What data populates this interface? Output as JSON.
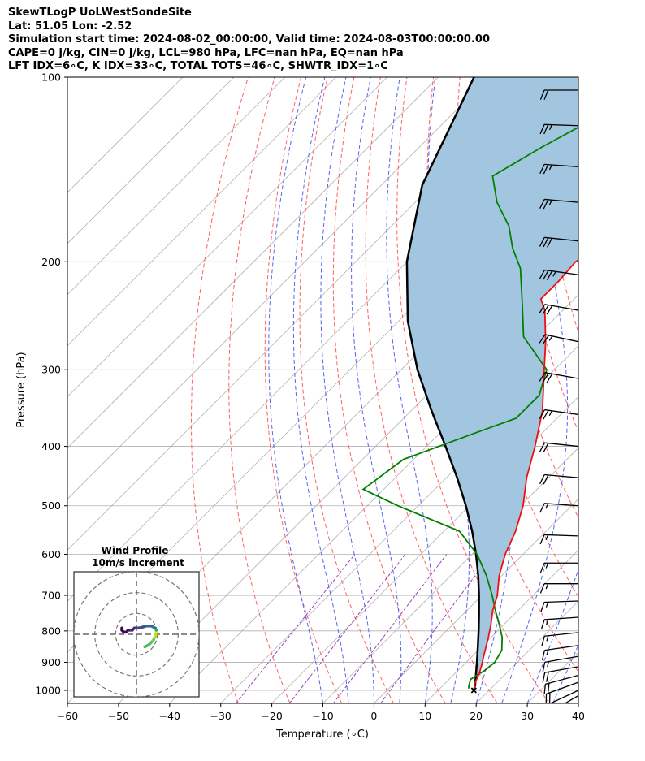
{
  "header": {
    "line1": "SkewTLogP UoLWestSondeSite",
    "line2": "Lat: 51.05   Lon: -2.52",
    "line3": "Simulation start time: 2024-08-02_00:00:00, Valid time: 2024-08-03T00:00:00.00",
    "line4": "CAPE=0 j/kg, CIN=0 j/kg, LCL=980 hPa, LFC=nan hPa, EQ=nan hPa",
    "line5": "LFT IDX=6∘C, K IDX=33∘C, TOTAL TOTS=46∘C, SHWTR_IDX=1∘C"
  },
  "colors": {
    "temperature": "#ee1111",
    "dewpoint": "#008000",
    "parcel": "#000000",
    "cape_shade": "#a3c6e0",
    "dry_adiabat": "#ff6060",
    "moist_adiabat": "#5566ee",
    "mixing_ratio": "#9944bb",
    "isotherm": "#b0b0b0"
  },
  "chart_data": {
    "type": "line",
    "xlabel": "Temperature (∘C)",
    "ylabel": "Pressure (hPa)",
    "x_ticks": [
      "−60",
      "−50",
      "−40",
      "−30",
      "−20",
      "−10",
      "0",
      "10",
      "20",
      "30",
      "40"
    ],
    "y_ticks": [
      "100",
      "200",
      "300",
      "400",
      "500",
      "600",
      "700",
      "800",
      "900",
      "1000"
    ],
    "xlim": [
      -60,
      40
    ],
    "ylim": [
      1050,
      100
    ],
    "y_scale": "log",
    "skew_degrees": 45,
    "series": [
      {
        "key": "temperature",
        "pressure": [
          993,
          980,
          960,
          940,
          910,
          870,
          820,
          780,
          740,
          700,
          650,
          600,
          550,
          500,
          450,
          400,
          350,
          300,
          270,
          240,
          230,
          215,
          200,
          185,
          170,
          155,
          145,
          130,
          120,
          110,
          100
        ],
        "temp": [
          16.8,
          16.0,
          15.4,
          14.8,
          13.6,
          11.8,
          9.5,
          7.4,
          5.0,
          3.0,
          -0.5,
          -3.5,
          -6.0,
          -9.5,
          -14.3,
          -18.8,
          -24.3,
          -32.0,
          -37.2,
          -43.5,
          -46.5,
          -46.5,
          -47.0,
          -44.0,
          -41.0,
          -35.0,
          -32.0,
          -32.0,
          -32.0,
          -31.5,
          -30.5
        ]
      },
      {
        "key": "dewpoint",
        "pressure": [
          993,
          980,
          960,
          945,
          930,
          900,
          860,
          820,
          780,
          740,
          700,
          650,
          600,
          550,
          500,
          470,
          420,
          380,
          360,
          330,
          300,
          265,
          235,
          205,
          190,
          175,
          160,
          145,
          130,
          120,
          110,
          100
        ],
        "temp": [
          15.6,
          15.0,
          14.2,
          14.6,
          15.2,
          15.6,
          14.6,
          12.2,
          9.0,
          5.5,
          2.0,
          -3.0,
          -9.0,
          -17.0,
          -34.0,
          -44.0,
          -42.0,
          -33.0,
          -28.0,
          -28.0,
          -31.5,
          -42.5,
          -49.0,
          -56.5,
          -62.0,
          -67.0,
          -74.0,
          -80.0,
          -76.0,
          -72.5,
          -68.0,
          -65.0
        ]
      },
      {
        "key": "parcel",
        "pressure": [
          1000,
          980,
          950,
          900,
          850,
          800,
          750,
          700,
          650,
          600,
          550,
          500,
          450,
          400,
          350,
          300,
          250,
          200,
          150,
          100
        ],
        "temp": [
          17.0,
          16.2,
          14.7,
          12.1,
          9.3,
          6.3,
          3.0,
          -0.6,
          -4.6,
          -9.2,
          -14.5,
          -20.7,
          -27.9,
          -36.3,
          -46.0,
          -56.8,
          -68.2,
          -80.0,
          -92.0,
          -103.0
        ]
      }
    ],
    "wind_barbs_pressure": [
      1020,
      1000,
      970,
      945,
      915,
      880,
      845,
      805,
      760,
      715,
      670,
      620,
      560,
      500,
      450,
      400,
      355,
      310,
      270,
      240,
      210,
      185,
      160,
      140,
      120,
      105
    ],
    "wind_barbs_speed_kt": [
      10,
      15,
      20,
      20,
      20,
      15,
      15,
      15,
      15,
      15,
      15,
      15,
      15,
      15,
      20,
      20,
      25,
      30,
      25,
      30,
      35,
      30,
      25,
      25,
      25,
      20
    ],
    "wind_barbs_dir_deg": [
      240,
      245,
      250,
      255,
      260,
      260,
      262,
      264,
      266,
      268,
      270,
      270,
      272,
      274,
      275,
      276,
      278,
      280,
      282,
      280,
      278,
      276,
      275,
      274,
      272,
      270
    ],
    "hodograph": {
      "title_line1": "Wind Profile",
      "title_line2": "10m/s increment",
      "u": [
        4,
        6,
        8,
        9,
        9.5,
        9.5,
        9,
        7,
        5,
        3,
        1,
        -1,
        -2,
        -4,
        -5,
        -6,
        -7,
        -7
      ],
      "v": [
        -6,
        -5,
        -3,
        -1,
        1,
        2,
        3,
        4,
        4,
        3.5,
        3,
        3,
        2,
        2,
        1,
        1,
        2,
        3
      ],
      "rings": [
        10,
        20,
        30
      ],
      "view_range": 30
    }
  }
}
